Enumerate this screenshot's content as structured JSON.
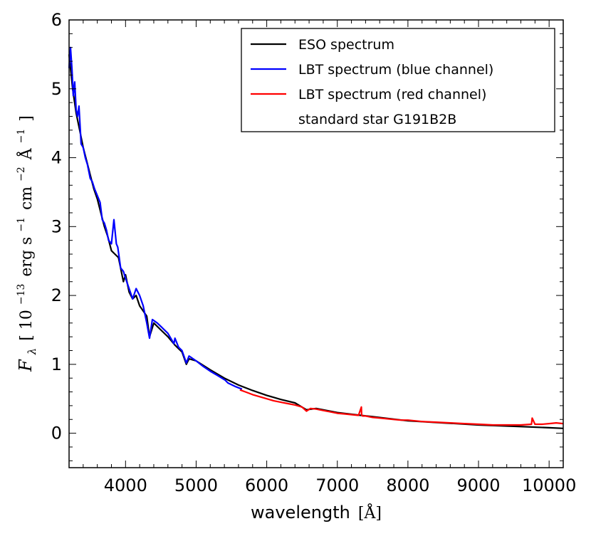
{
  "chart_data": {
    "type": "line",
    "title": "",
    "xlabel": "wavelength",
    "xlabel_unit": "[Å]",
    "ylabel": {
      "symbol": "F",
      "subscript": "λ",
      "bracket_open": "[",
      "base": "10",
      "exp": "−13",
      "erg": "erg s",
      "exp_s": "−1",
      "cm": "cm",
      "exp_cm": "−2",
      "ang": "Å",
      "exp_ang": "−1",
      "bracket_close": "]"
    },
    "xlim": [
      3200,
      10200
    ],
    "ylim": [
      -0.5,
      6
    ],
    "xticks": [
      4000,
      5000,
      6000,
      7000,
      8000,
      9000,
      10000
    ],
    "xtick_labels": [
      "4000",
      "5000",
      "6000",
      "7000",
      "8000",
      "9000",
      "10000"
    ],
    "yticks": [
      0,
      1,
      2,
      3,
      4,
      5,
      6
    ],
    "ytick_labels": [
      "0",
      "1",
      "2",
      "3",
      "4",
      "5",
      "6"
    ],
    "legend_position": "top-right",
    "legend": [
      {
        "label": "ESO spectrum",
        "color": "#000000"
      },
      {
        "label": "LBT spectrum (blue channel)",
        "color": "#0000ff"
      },
      {
        "label": "LBT spectrum (red channel)",
        "color": "#ff0000"
      },
      {
        "label": "standard star G191B2B",
        "color": "none"
      }
    ],
    "series": [
      {
        "name": "ESO spectrum",
        "color": "#000000",
        "x": [
          3200,
          3250,
          3300,
          3350,
          3400,
          3450,
          3500,
          3550,
          3600,
          3650,
          3700,
          3750,
          3800,
          3850,
          3900,
          3970,
          4000,
          4050,
          4100,
          4150,
          4200,
          4300,
          4340,
          4400,
          4500,
          4600,
          4700,
          4800,
          4861,
          4900,
          5000,
          5200,
          5400,
          5600,
          5800,
          6000,
          6200,
          6400,
          6563,
          6700,
          7000,
          7500,
          8000,
          8500,
          9000,
          9500,
          10000,
          10200
        ],
        "y": [
          5.5,
          5.0,
          4.65,
          4.4,
          4.15,
          3.95,
          3.75,
          3.55,
          3.4,
          3.2,
          3.0,
          2.85,
          2.65,
          2.6,
          2.55,
          2.2,
          2.3,
          2.05,
          1.95,
          2.0,
          1.85,
          1.7,
          1.4,
          1.6,
          1.5,
          1.4,
          1.28,
          1.18,
          1.0,
          1.08,
          1.05,
          0.92,
          0.8,
          0.7,
          0.62,
          0.55,
          0.49,
          0.44,
          0.34,
          0.36,
          0.3,
          0.24,
          0.18,
          0.15,
          0.12,
          0.1,
          0.08,
          0.07
        ]
      },
      {
        "name": "LBT spectrum (blue channel)",
        "color": "#0000ff",
        "x": [
          3200,
          3220,
          3240,
          3260,
          3280,
          3300,
          3320,
          3340,
          3370,
          3400,
          3430,
          3460,
          3500,
          3530,
          3560,
          3600,
          3640,
          3670,
          3700,
          3730,
          3760,
          3800,
          3835,
          3870,
          3890,
          3930,
          3970,
          4000,
          4050,
          4101,
          4150,
          4200,
          4250,
          4300,
          4340,
          4380,
          4450,
          4500,
          4600,
          4686,
          4700,
          4750,
          4800,
          4861,
          4900,
          5000,
          5100,
          5200,
          5300,
          5412,
          5450,
          5550,
          5650
        ],
        "y": [
          5.3,
          5.6,
          5.3,
          4.9,
          5.1,
          4.7,
          4.6,
          4.75,
          4.2,
          4.15,
          4.0,
          3.9,
          3.7,
          3.65,
          3.55,
          3.45,
          3.35,
          3.1,
          3.05,
          2.95,
          2.8,
          2.75,
          3.1,
          2.75,
          2.7,
          2.4,
          2.35,
          2.25,
          2.1,
          1.95,
          2.1,
          2.0,
          1.85,
          1.6,
          1.38,
          1.65,
          1.6,
          1.55,
          1.45,
          1.3,
          1.38,
          1.25,
          1.2,
          1.02,
          1.12,
          1.05,
          0.97,
          0.9,
          0.84,
          0.77,
          0.73,
          0.68,
          0.64
        ]
      },
      {
        "name": "LBT spectrum (red channel)",
        "color": "#ff0000",
        "x": [
          5620,
          5700,
          5800,
          5900,
          6000,
          6100,
          6200,
          6300,
          6400,
          6500,
          6563,
          6620,
          6700,
          6800,
          6900,
          7000,
          7100,
          7200,
          7300,
          7340,
          7345,
          7360,
          7400,
          7500,
          7600,
          7700,
          7800,
          7900,
          8000,
          8200,
          8400,
          8600,
          8800,
          9000,
          9200,
          9400,
          9600,
          9750,
          9760,
          9800,
          9900,
          10000,
          10100,
          10200
        ],
        "y": [
          0.63,
          0.6,
          0.56,
          0.53,
          0.5,
          0.47,
          0.45,
          0.43,
          0.41,
          0.38,
          0.32,
          0.36,
          0.35,
          0.33,
          0.31,
          0.29,
          0.28,
          0.27,
          0.26,
          0.38,
          0.26,
          0.25,
          0.25,
          0.23,
          0.22,
          0.21,
          0.2,
          0.19,
          0.19,
          0.17,
          0.16,
          0.15,
          0.14,
          0.13,
          0.12,
          0.12,
          0.12,
          0.13,
          0.22,
          0.13,
          0.13,
          0.14,
          0.15,
          0.14
        ]
      }
    ]
  }
}
